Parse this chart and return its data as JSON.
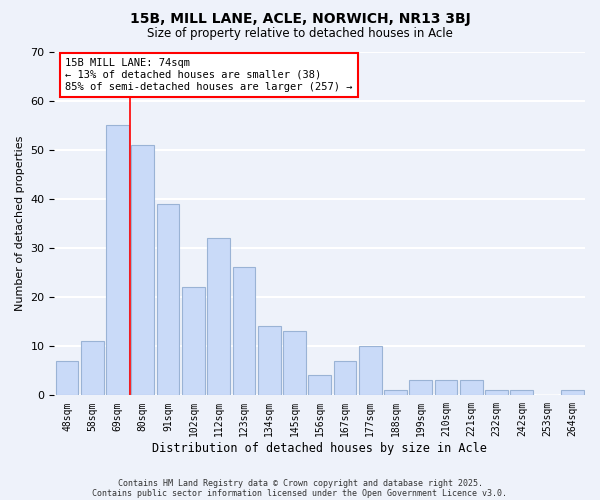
{
  "title_line1": "15B, MILL LANE, ACLE, NORWICH, NR13 3BJ",
  "title_line2": "Size of property relative to detached houses in Acle",
  "xlabel": "Distribution of detached houses by size in Acle",
  "ylabel": "Number of detached properties",
  "bar_labels": [
    "48sqm",
    "58sqm",
    "69sqm",
    "80sqm",
    "91sqm",
    "102sqm",
    "112sqm",
    "123sqm",
    "134sqm",
    "145sqm",
    "156sqm",
    "167sqm",
    "177sqm",
    "188sqm",
    "199sqm",
    "210sqm",
    "221sqm",
    "232sqm",
    "242sqm",
    "253sqm",
    "264sqm"
  ],
  "bar_values": [
    7,
    11,
    55,
    51,
    39,
    22,
    32,
    26,
    14,
    13,
    4,
    7,
    10,
    1,
    3,
    3,
    3,
    1,
    1,
    0,
    1
  ],
  "bar_color": "#c9daf8",
  "bar_edge_color": "#9ab3d5",
  "vline_x": 2.5,
  "vline_color": "red",
  "ylim": [
    0,
    70
  ],
  "yticks": [
    0,
    10,
    20,
    30,
    40,
    50,
    60,
    70
  ],
  "annotation_text": "15B MILL LANE: 74sqm\n← 13% of detached houses are smaller (38)\n85% of semi-detached houses are larger (257) →",
  "annotation_box_color": "white",
  "annotation_box_edge": "red",
  "footer_line1": "Contains HM Land Registry data © Crown copyright and database right 2025.",
  "footer_line2": "Contains public sector information licensed under the Open Government Licence v3.0.",
  "background_color": "#eef2fa",
  "grid_color": "white"
}
